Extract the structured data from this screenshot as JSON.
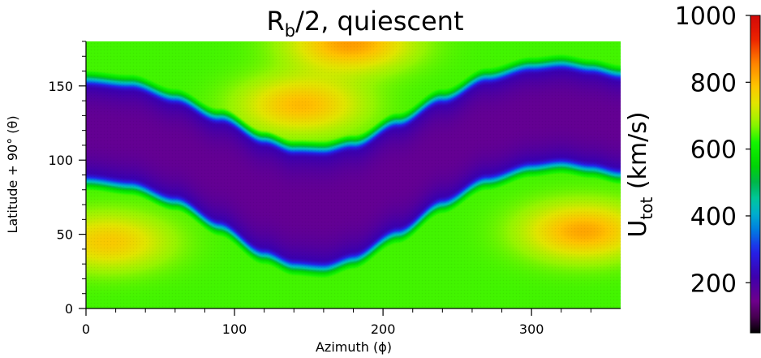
{
  "chart_data": {
    "type": "heatmap",
    "title": {
      "main": "R",
      "sub": "b",
      "rest": "/2, quiescent"
    },
    "xlabel": "Azimuth (ϕ)",
    "ylabel": "Latitude + 90° (θ)",
    "xlim": [
      0,
      360
    ],
    "ylim": [
      0,
      180
    ],
    "xticks": [
      0,
      100,
      200,
      300
    ],
    "yticks": [
      0,
      50,
      100,
      150
    ],
    "colorbar": {
      "label_main": "U",
      "label_sub": "tot",
      "label_rest": " (km/s)",
      "range": [
        50,
        1000
      ],
      "ticks": [
        200,
        400,
        600,
        800,
        1000
      ],
      "colormap": "nipy_spectral"
    },
    "grid": false,
    "current_sheet": {
      "description_values": "slow-wind band (~150-250 km/s) centred on the neutral line",
      "centerline_theta": [
        [
          0,
          120
        ],
        [
          30,
          117
        ],
        [
          60,
          107
        ],
        [
          90,
          92
        ],
        [
          120,
          75
        ],
        [
          140,
          68
        ],
        [
          160,
          67
        ],
        [
          180,
          72
        ],
        [
          210,
          88
        ],
        [
          240,
          106
        ],
        [
          270,
          121
        ],
        [
          300,
          129
        ],
        [
          320,
          131
        ],
        [
          340,
          128
        ],
        [
          360,
          124
        ]
      ],
      "half_width_theta": [
        [
          0,
          28
        ],
        [
          60,
          29
        ],
        [
          120,
          33
        ],
        [
          160,
          34
        ],
        [
          200,
          32
        ],
        [
          260,
          29
        ],
        [
          320,
          28
        ],
        [
          360,
          28
        ]
      ]
    },
    "fast_wind_maxima": [
      {
        "phi": 15,
        "theta": 45,
        "value": 780
      },
      {
        "phi": 145,
        "theta": 137,
        "value": 800
      },
      {
        "phi": 335,
        "theta": 52,
        "value": 820
      },
      {
        "phi": 178,
        "theta": 179,
        "value": 830
      }
    ],
    "background_value": 640
  }
}
